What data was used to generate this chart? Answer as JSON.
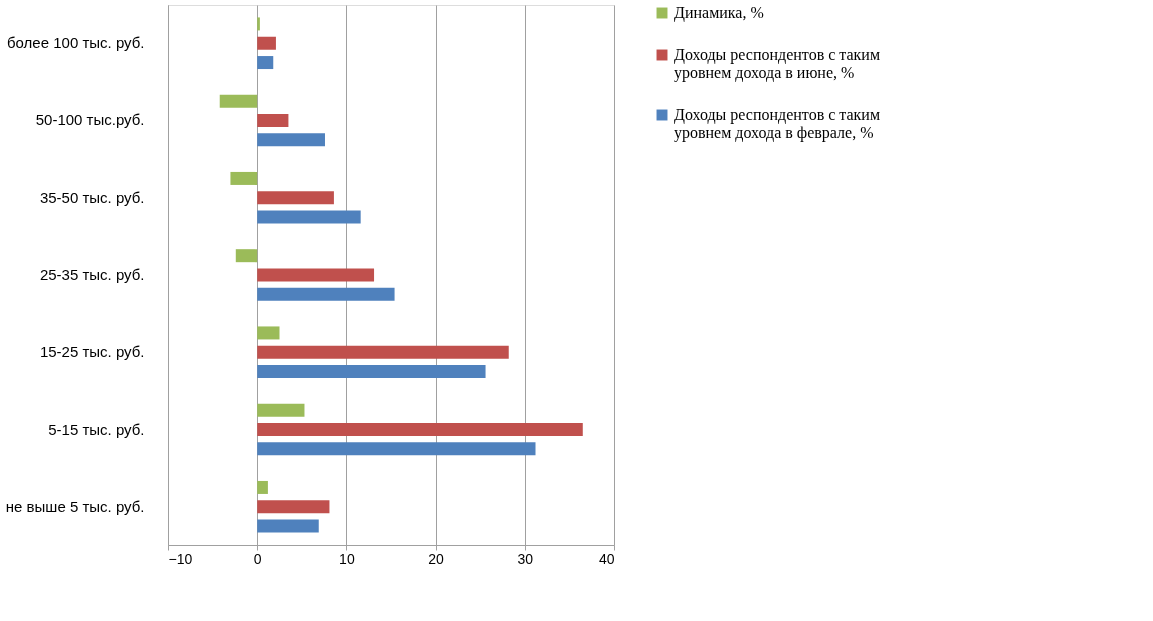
{
  "chart_data": {
    "type": "bar",
    "orientation": "horizontal",
    "categories": [
      "более 100 тыс. руб.",
      "50-100 тыс.руб.",
      "35-50 тыс. руб.",
      "25-35 тыс. руб.",
      "15-25 тыс. руб.",
      "5-15 тыс. руб.",
      "не выше 5 тыс. руб."
    ],
    "series": [
      {
        "name": "Динамика, %",
        "color": "#9bbb59",
        "values": [
          0.3,
          -4.2,
          -3.0,
          -2.4,
          2.5,
          5.3,
          1.2
        ]
      },
      {
        "name": "Доходы респондентов с таким уровнем  дохода в июне, %",
        "color": "#c0504d",
        "values": [
          2.1,
          3.5,
          8.6,
          13.1,
          28.2,
          36.5,
          8.1
        ]
      },
      {
        "name": "Доходы респондентов с таким уровнем  дохода в феврале, %",
        "color": "#4f81bd",
        "values": [
          1.8,
          7.6,
          11.6,
          15.4,
          25.6,
          31.2,
          6.9
        ]
      }
    ],
    "xlim": [
      -10,
      40
    ],
    "xticks": [
      -10,
      0,
      10,
      20,
      30,
      40
    ],
    "grid": "x",
    "legend": "right"
  }
}
